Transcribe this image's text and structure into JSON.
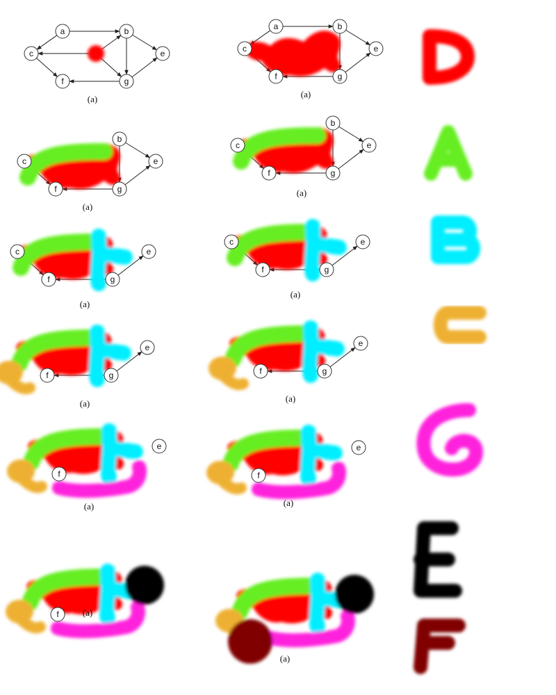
{
  "colors": {
    "D": "#ff0000",
    "A": "#66ee22",
    "B": "#00eeff",
    "C": "#eeb030",
    "G": "#ff22dd",
    "E": "#000000",
    "F": "#800000"
  },
  "icons": [
    "letter-D",
    "letter-A",
    "letter-B",
    "letter-C",
    "letter-G",
    "letter-E",
    "letter-F"
  ],
  "legend_letters": [
    "D",
    "A",
    "B",
    "C",
    "G",
    "E",
    "F"
  ],
  "panels": [
    {
      "caption": "(a)",
      "nodes": [
        "a",
        "b",
        "c",
        "e",
        "f",
        "g"
      ],
      "blobs": [
        "D"
      ]
    },
    {
      "caption": "(a)",
      "nodes": [
        "a",
        "b",
        "c",
        "e",
        "f",
        "g"
      ],
      "blobs": [
        "D"
      ]
    },
    {
      "caption": "(a)",
      "nodes": [
        "b",
        "c",
        "e",
        "f",
        "g"
      ],
      "blobs": [
        "D",
        "A"
      ]
    },
    {
      "caption": "(a)",
      "nodes": [
        "b",
        "c",
        "e",
        "f",
        "g"
      ],
      "blobs": [
        "D",
        "A"
      ]
    },
    {
      "caption": "(a)",
      "nodes": [
        "c",
        "e",
        "f",
        "g"
      ],
      "blobs": [
        "D",
        "A",
        "B"
      ]
    },
    {
      "caption": "(a)",
      "nodes": [
        "c",
        "e",
        "f",
        "g"
      ],
      "blobs": [
        "D",
        "A",
        "B"
      ]
    },
    {
      "caption": "(a)",
      "nodes": [
        "e",
        "f",
        "g"
      ],
      "blobs": [
        "D",
        "A",
        "B",
        "C"
      ]
    },
    {
      "caption": "(a)",
      "nodes": [
        "e",
        "f",
        "g"
      ],
      "blobs": [
        "D",
        "A",
        "B",
        "C"
      ]
    },
    {
      "caption": "(a)",
      "nodes": [
        "e",
        "f"
      ],
      "blobs": [
        "D",
        "A",
        "B",
        "C",
        "G"
      ]
    },
    {
      "caption": "(a)",
      "nodes": [
        "e",
        "f"
      ],
      "blobs": [
        "D",
        "A",
        "B",
        "C",
        "G"
      ]
    },
    {
      "caption": "(a)",
      "nodes": [
        "f"
      ],
      "blobs": [
        "D",
        "A",
        "B",
        "C",
        "G",
        "E"
      ]
    },
    {
      "caption": "(a)",
      "nodes": [],
      "blobs": [
        "D",
        "A",
        "B",
        "C",
        "G",
        "E",
        "F"
      ]
    }
  ],
  "edges": [
    [
      "a",
      "b"
    ],
    [
      "b",
      "e"
    ],
    [
      "b",
      "g"
    ],
    [
      "c",
      "f"
    ],
    [
      "a",
      "c"
    ],
    [
      "g",
      "f"
    ],
    [
      "g",
      "e"
    ],
    [
      "d",
      "b"
    ],
    [
      "d",
      "c"
    ],
    [
      "d",
      "g"
    ]
  ]
}
